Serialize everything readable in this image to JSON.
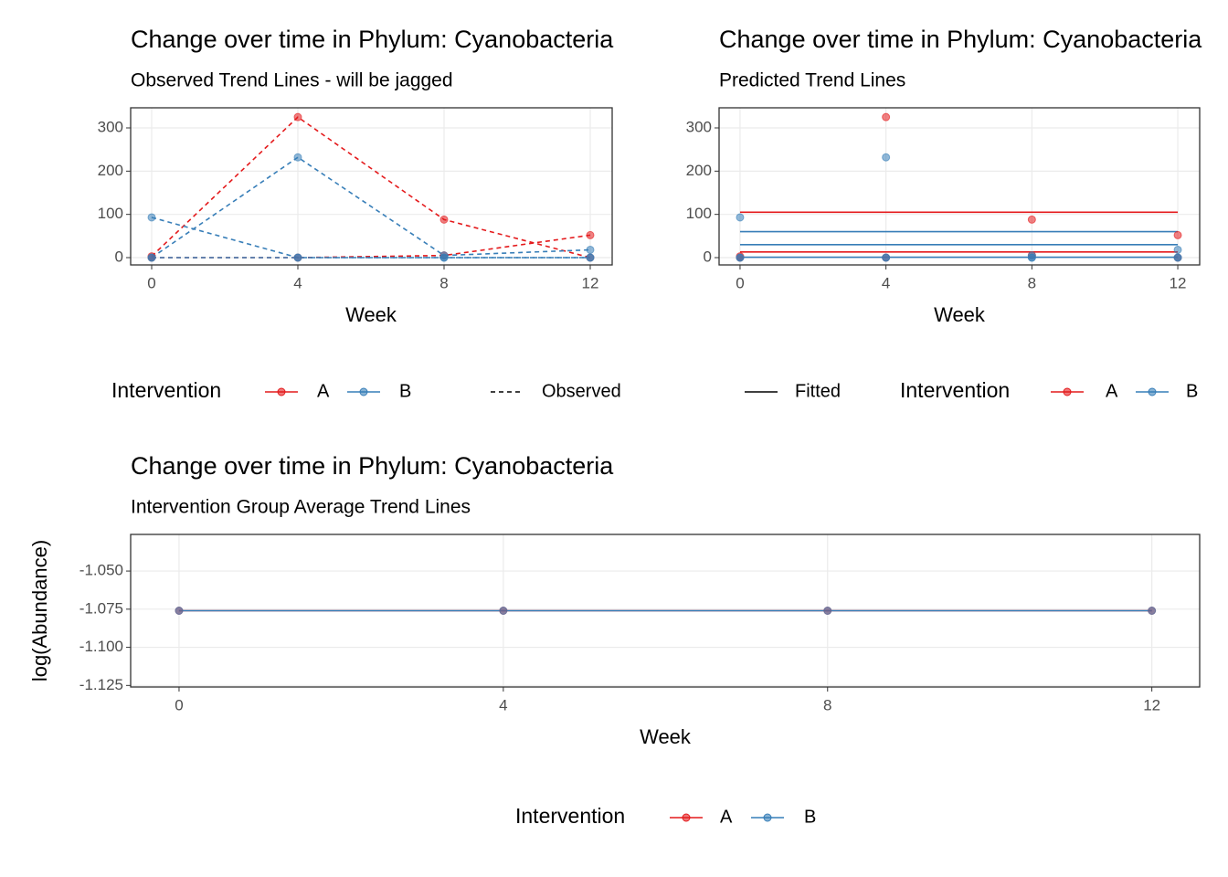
{
  "chart_data": [
    {
      "type": "line",
      "title": "Change over time in Phylum: Cyanobacteria",
      "subtitle": "Observed Trend Lines - will be jagged",
      "x_label": "Week",
      "x": [
        0,
        4,
        8,
        12
      ],
      "xlim": [
        -0.575,
        12.6
      ],
      "xticks": [
        0,
        4,
        8,
        12
      ],
      "ylim": [
        -16.9,
        346.5
      ],
      "yticks": [
        0,
        100,
        200,
        300
      ],
      "grid": true,
      "legend_title": "Intervention",
      "groups": [
        {
          "name": "A",
          "color": "#E41A1C"
        },
        {
          "name": "B",
          "color": "#377EB8"
        }
      ],
      "linetype_legend": {
        "name": "Observed",
        "line": "dashed"
      },
      "series": [
        {
          "name": "A",
          "values": [
            3,
            325,
            88,
            0
          ],
          "line": "dashed",
          "points": true
        },
        {
          "name": "A",
          "values": [
            0,
            0,
            5,
            52
          ],
          "line": "dashed",
          "points": true
        },
        {
          "name": "B",
          "values": [
            0,
            232,
            5,
            18
          ],
          "line": "dashed",
          "points": true
        },
        {
          "name": "B",
          "values": [
            93,
            0,
            0,
            0
          ],
          "line": "dashed",
          "points": true
        },
        {
          "name": "B",
          "values": [
            0,
            0,
            0,
            0
          ],
          "line": "dashed",
          "points": true
        }
      ]
    },
    {
      "type": "line",
      "title": "Change over time in Phylum: Cyanobacteria",
      "subtitle": "Predicted Trend Lines",
      "x_label": "Week",
      "x": [
        0,
        4,
        8,
        12
      ],
      "xlim": [
        -0.575,
        12.6
      ],
      "xticks": [
        0,
        4,
        8,
        12
      ],
      "ylim": [
        -16.9,
        346.5
      ],
      "yticks": [
        0,
        100,
        200,
        300
      ],
      "grid": true,
      "legend_title": "Intervention",
      "groups": [
        {
          "name": "A",
          "color": "#E41A1C"
        },
        {
          "name": "B",
          "color": "#377EB8"
        }
      ],
      "linetype_legend": {
        "name": "Fitted",
        "line": "solid"
      },
      "series": [
        {
          "name": "A",
          "values": [
            105,
            105,
            105,
            105
          ],
          "line": "solid"
        },
        {
          "name": "B",
          "values": [
            60,
            60,
            60,
            60
          ],
          "line": "solid"
        },
        {
          "name": "B",
          "values": [
            30,
            30,
            30,
            30
          ],
          "line": "solid"
        },
        {
          "name": "A",
          "values": [
            13,
            13,
            13,
            13
          ],
          "line": "solid"
        },
        {
          "name": "B",
          "values": [
            1,
            1,
            1,
            1
          ],
          "line": "solid"
        },
        {
          "name": "A",
          "values": [
            3,
            325,
            88,
            0
          ],
          "points": true
        },
        {
          "name": "A",
          "values": [
            0,
            0,
            5,
            52
          ],
          "points": true
        },
        {
          "name": "B",
          "values": [
            0,
            232,
            5,
            18
          ],
          "points": true
        },
        {
          "name": "B",
          "values": [
            93,
            0,
            0,
            0
          ],
          "points": true
        },
        {
          "name": "B",
          "values": [
            0,
            0,
            0,
            0
          ],
          "points": true
        }
      ]
    },
    {
      "type": "line",
      "title": "Change over time in Phylum: Cyanobacteria",
      "subtitle": "Intervention Group Average Trend Lines",
      "x_label": "Week",
      "y_label": "log(Abundance)",
      "x": [
        0,
        4,
        8,
        12
      ],
      "xlim": [
        -0.597,
        12.59
      ],
      "xticks": [
        0,
        4,
        8,
        12
      ],
      "ylim": [
        -1.126,
        -1.026
      ],
      "yticks": [
        {
          "value": -1.05,
          "label": "-1.050"
        },
        {
          "value": -1.075,
          "label": "-1.075"
        },
        {
          "value": -1.1,
          "label": "-1.100"
        },
        {
          "value": -1.125,
          "label": "-1.125"
        }
      ],
      "grid": true,
      "legend_title": "Intervention",
      "groups": [
        {
          "name": "A",
          "color": "#E41A1C"
        },
        {
          "name": "B",
          "color": "#377EB8"
        }
      ],
      "series": [
        {
          "name": "A",
          "values": [
            -1.076,
            -1.076,
            -1.076,
            -1.076
          ],
          "line": "solid",
          "points": true
        },
        {
          "name": "B",
          "values": [
            -1.076,
            -1.076,
            -1.076,
            -1.076
          ],
          "line": "solid",
          "points": true
        }
      ]
    }
  ]
}
